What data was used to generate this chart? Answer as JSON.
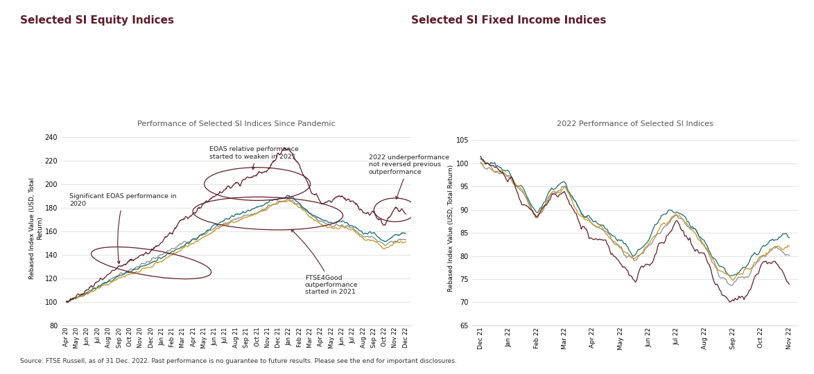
{
  "title_left": "Selected SI Equity Indices",
  "title_right": "Selected SI Fixed Income Indices",
  "chart1_title": "Performance of Selected SI Indices Since Pandemic",
  "chart2_title": "2022 Performance of Selected SI Indices",
  "ylabel1": "Rebased Index Value (USD, Total\nReturn)",
  "ylabel2": "Rebased Index Value (USD, Total Return)",
  "colors": {
    "EOAS": "#5c1a28",
    "PAB": "#8c8c8c",
    "FTSE4GOOD": "#1a6b6b",
    "ALL WORLD": "#c8941a"
  },
  "source_text": "Source: FTSE Russell, as of 31 Dec. 2022. Past performance is no guarantee to future results. Please see the end for important disclosures.",
  "chart1_ylim": [
    80,
    245
  ],
  "chart1_yticks": [
    80,
    100,
    120,
    140,
    160,
    180,
    200,
    220,
    240
  ],
  "chart2_ylim": [
    65,
    107
  ],
  "chart2_yticks": [
    65,
    70,
    75,
    80,
    85,
    90,
    95,
    100,
    105
  ],
  "chart1_xticks_labels": [
    "Apr 20",
    "May 20",
    "Jun 20",
    "Jul 20",
    "Aug 20",
    "Sep 20",
    "Oct 20",
    "Nov 20",
    "Dec 20",
    "Jan 21",
    "Feb 21",
    "Mar 21",
    "Apr 21",
    "May 21",
    "Jun 21",
    "Jul 21",
    "Aug 21",
    "Sep 21",
    "Oct 21",
    "Nov 21",
    "Dec 21",
    "Jan 22",
    "Feb 22",
    "Mar 22",
    "Apr 22",
    "May 22",
    "Jun 22",
    "Jul 22",
    "Aug 22",
    "Sep 22",
    "Oct 22",
    "Nov 22",
    "Dec 22"
  ],
  "chart2_xticks_labels": [
    "Dec 21",
    "Jan 22",
    "Feb 22",
    "Mar 22",
    "Apr 22",
    "May 22",
    "Jun 22",
    "Jul 22",
    "Aug 22",
    "Sep 22",
    "Oct 22",
    "Nov 22"
  ]
}
